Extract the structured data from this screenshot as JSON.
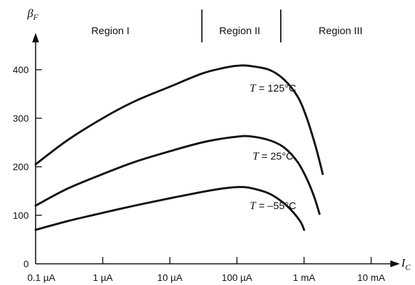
{
  "chart_data": {
    "type": "line",
    "x_scale": "log",
    "y_label_symbol": "β",
    "y_label_sub": "F",
    "x_label_symbol": "I",
    "x_label_sub": "C",
    "x_ticks": [
      {
        "value": 1e-07,
        "label": "0.1 µA"
      },
      {
        "value": 1e-06,
        "label": "1 µA"
      },
      {
        "value": 1e-05,
        "label": "10 µA"
      },
      {
        "value": 0.0001,
        "label": "100 µA"
      },
      {
        "value": 0.001,
        "label": "1 mA"
      },
      {
        "value": 0.01,
        "label": "10 mA"
      }
    ],
    "y_ticks": [
      0,
      100,
      200,
      300,
      400
    ],
    "ylim": [
      0,
      460
    ],
    "xlim": [
      1e-07,
      0.02
    ],
    "regions": [
      {
        "label": "Region I",
        "x": 1.3e-06
      },
      {
        "label": "Region II",
        "x": 0.00011
      },
      {
        "label": "Region III",
        "x": 0.0035
      }
    ],
    "region_boundaries": [
      3e-05,
      0.00045
    ],
    "series": [
      {
        "name": "T = 125°C",
        "label_prefix": "T",
        "label_value": " = 125°C",
        "label_pos": [
          0.00017,
          362
        ],
        "x": [
          1e-07,
          3e-07,
          1e-06,
          3e-06,
          1e-05,
          3e-05,
          6e-05,
          0.0001,
          0.00015,
          0.0003,
          0.0005,
          0.0008,
          0.0011,
          0.0015,
          0.0019
        ],
        "y": [
          205,
          255,
          300,
          335,
          365,
          392,
          403,
          408,
          408,
          400,
          380,
          345,
          300,
          240,
          185
        ]
      },
      {
        "name": "T = 25°C",
        "label_prefix": "T",
        "label_value": " = 25°C",
        "label_pos": [
          0.00017,
          222
        ],
        "x": [
          1e-07,
          3e-07,
          1e-06,
          3e-06,
          1e-05,
          3e-05,
          6e-05,
          0.0001,
          0.00015,
          0.0003,
          0.0005,
          0.0008,
          0.0011,
          0.0014,
          0.0017
        ],
        "y": [
          120,
          155,
          185,
          210,
          232,
          250,
          258,
          262,
          263,
          255,
          240,
          210,
          175,
          140,
          103
        ]
      },
      {
        "name": "T = -55°C",
        "label_prefix": "T",
        "label_value": " = –55°C",
        "label_pos": [
          0.00017,
          120
        ],
        "x": [
          1e-07,
          3e-07,
          1e-06,
          3e-06,
          1e-05,
          3e-05,
          6e-05,
          0.0001,
          0.00015,
          0.0003,
          0.0005,
          0.0007,
          0.0009,
          0.001
        ],
        "y": [
          70,
          88,
          105,
          120,
          135,
          148,
          155,
          158,
          157,
          145,
          125,
          105,
          85,
          70
        ]
      }
    ]
  }
}
